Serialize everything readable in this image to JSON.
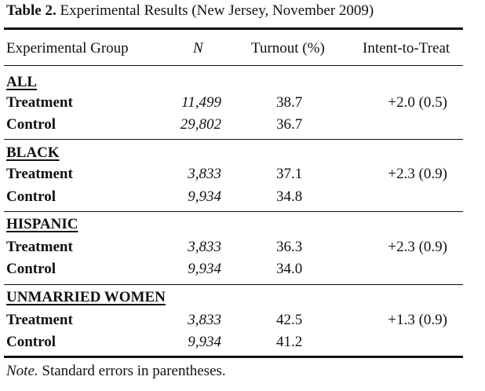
{
  "caption": {
    "label": "Table 2.",
    "title": "Experimental Results (New Jersey, November 2009)"
  },
  "headers": {
    "group": "Experimental Group",
    "n": "N",
    "turnout": "Turnout (%)",
    "itt": "Intent-to-Treat"
  },
  "groups": [
    {
      "name": "ALL",
      "rows": [
        {
          "label": "Treatment",
          "n": "11,499",
          "turnout": "38.7",
          "itt": "+2.0 (0.5)"
        },
        {
          "label": "Control",
          "n": "29,802",
          "turnout": "36.7",
          "itt": ""
        }
      ]
    },
    {
      "name": "BLACK",
      "rows": [
        {
          "label": "Treatment",
          "n": "3,833",
          "turnout": "37.1",
          "itt": "+2.3 (0.9)"
        },
        {
          "label": "Control",
          "n": "9,934",
          "turnout": "34.8",
          "itt": ""
        }
      ]
    },
    {
      "name": "HISPANIC",
      "rows": [
        {
          "label": "Treatment",
          "n": "3,833",
          "turnout": "36.3",
          "itt": "+2.3 (0.9)"
        },
        {
          "label": "Control",
          "n": "9,934",
          "turnout": "34.0",
          "itt": ""
        }
      ]
    },
    {
      "name": "UNMARRIED WOMEN",
      "rows": [
        {
          "label": "Treatment",
          "n": "3,833",
          "turnout": "42.5",
          "itt": "+1.3 (0.9)"
        },
        {
          "label": "Control",
          "n": "9,934",
          "turnout": "41.2",
          "itt": ""
        }
      ]
    }
  ],
  "note": {
    "label": "Note.",
    "text": "Standard errors in parentheses."
  }
}
